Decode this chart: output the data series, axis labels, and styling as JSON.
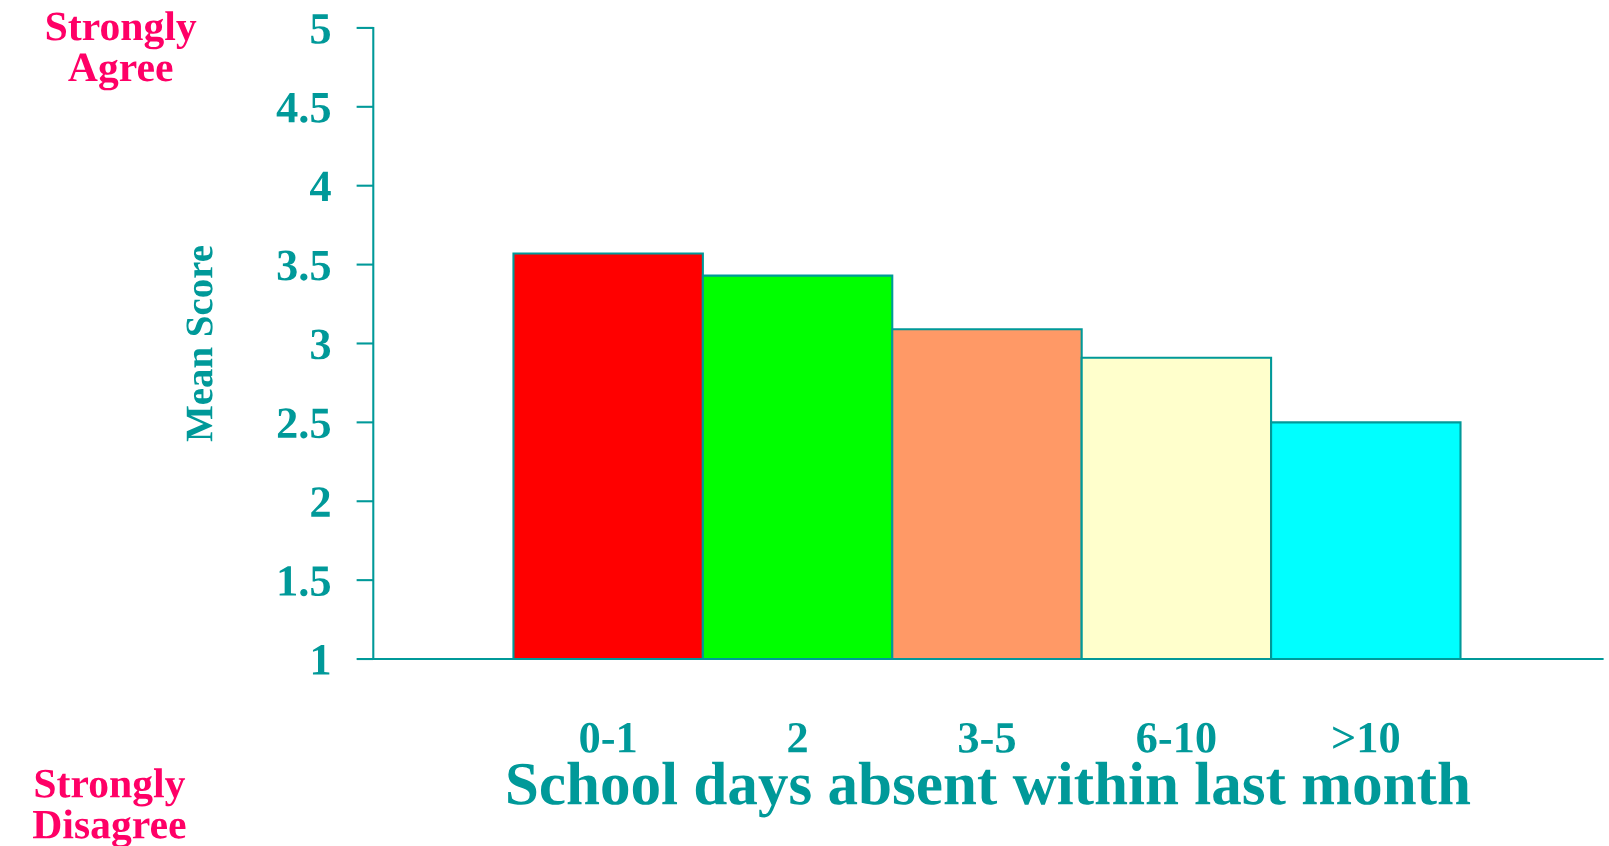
{
  "chart_data": {
    "type": "bar",
    "xlabel": "School days absent within last month",
    "ylabel": "Mean Score",
    "categories": [
      "0-1",
      "2",
      "3-5",
      "6-10",
      ">10"
    ],
    "values": [
      3.57,
      3.43,
      3.09,
      2.91,
      2.5
    ],
    "colors": [
      "#ff0000",
      "#00ff00",
      "#ff9966",
      "#ffffcc",
      "#00ffff"
    ],
    "ylim": [
      1,
      5
    ],
    "yticks": [
      1,
      1.5,
      2,
      2.5,
      3,
      3.5,
      4,
      4.5,
      5
    ],
    "annotations": [
      "Strongly\nAgree",
      "Strongly\nDisagree"
    ],
    "grid": false,
    "legend": false
  }
}
